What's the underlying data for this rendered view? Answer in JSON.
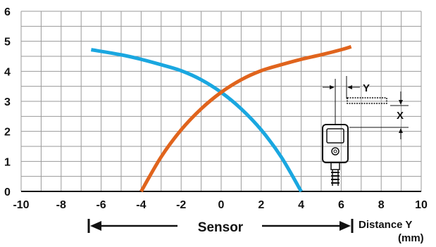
{
  "chart_data": {
    "type": "line",
    "x_ticks": [
      "-10",
      "-8",
      "-6",
      "-4",
      "-2",
      "0",
      "2",
      "4",
      "6",
      "8",
      "10"
    ],
    "y_ticks": [
      "0",
      "1",
      "2",
      "3",
      "4",
      "5",
      "6"
    ],
    "xlim": [
      -10,
      10
    ],
    "ylim": [
      0,
      6
    ],
    "grid": true,
    "series": [
      {
        "color": "#1aa7e0",
        "x": [
          -6.5,
          -5,
          -4,
          -3,
          -2,
          -1,
          0,
          1,
          2,
          3,
          4
        ],
        "y": [
          4.72,
          4.55,
          4.4,
          4.22,
          4.02,
          3.72,
          3.3,
          2.75,
          2.05,
          1.15,
          0.0
        ]
      },
      {
        "color": "#e0641d",
        "x": [
          -4,
          -3,
          -2,
          -1,
          0,
          1,
          2,
          3,
          4,
          5,
          6,
          6.5
        ],
        "y": [
          0.0,
          1.15,
          2.05,
          2.75,
          3.3,
          3.72,
          4.02,
          4.22,
          4.4,
          4.55,
          4.72,
          4.82
        ]
      }
    ],
    "annotations": {
      "sensor_label": "Sensor",
      "distance_label": "Distance Y",
      "unit_label": "(mm)",
      "inset_y": "Y",
      "inset_x": "X"
    }
  },
  "colors": {
    "grid": "#9a9a9a",
    "axis": "#111111",
    "inset": "#111111"
  }
}
